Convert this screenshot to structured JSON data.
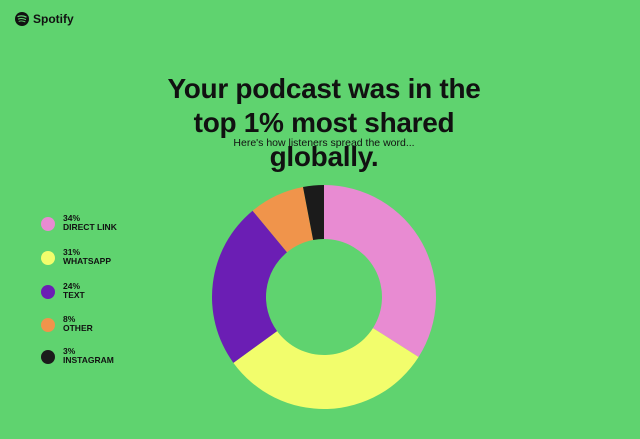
{
  "brand": "Spotify",
  "chart_data": {
    "type": "donut",
    "title": "Your podcast was in the top 1% most shared globally.",
    "subtitle": "Here's how listeners spread the word...",
    "categories": [
      "DIRECT LINK",
      "WHATSAPP",
      "TEXT",
      "OTHER",
      "INSTAGRAM"
    ],
    "values": [
      34,
      31,
      24,
      8,
      3
    ],
    "value_labels": [
      "34%",
      "31%",
      "24%",
      "8%",
      "3%"
    ],
    "colors": [
      "#e88bd2",
      "#f2fd6c",
      "#6b1eb4",
      "#f0944b",
      "#1b1b1b"
    ]
  }
}
